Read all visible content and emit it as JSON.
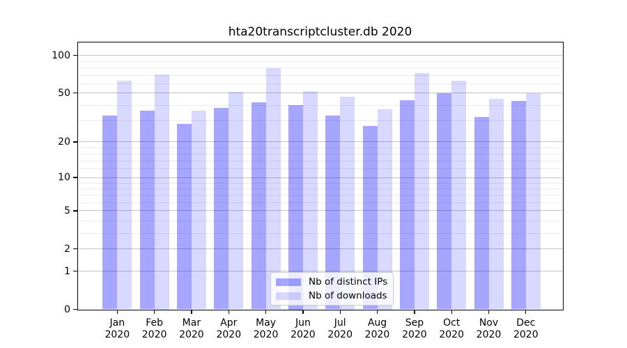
{
  "figure": {
    "title": "hta20transcriptcluster.db 2020"
  },
  "chart_data": {
    "type": "bar",
    "title": "hta20transcriptcluster.db 2020",
    "xlabel": "",
    "ylabel": "",
    "categories": [
      "Jan 2020",
      "Feb 2020",
      "Mar 2020",
      "Apr 2020",
      "May 2020",
      "Jun 2020",
      "Jul 2020",
      "Aug 2020",
      "Sep 2020",
      "Oct 2020",
      "Nov 2020",
      "Dec 2020"
    ],
    "series": [
      {
        "name": "Nb of distinct IPs",
        "color": "rgba(0,0,255,0.35)",
        "values": [
          33,
          36,
          28,
          38,
          42,
          40,
          33,
          27,
          44,
          50,
          32,
          43
        ]
      },
      {
        "name": "Nb of downloads",
        "color": "rgba(0,0,255,0.15)",
        "values": [
          63,
          71,
          36,
          51,
          79,
          52,
          47,
          37,
          72,
          63,
          45,
          50
        ]
      }
    ],
    "yscale": "log1p",
    "ylim": [
      0,
      127
    ],
    "y_major_ticks": [
      0,
      1,
      2,
      5,
      10,
      20,
      50,
      100
    ],
    "y_minor_gridlines": [
      3,
      4,
      6,
      7,
      8,
      9,
      12,
      14,
      16,
      18,
      30,
      40,
      60,
      70,
      80,
      90
    ],
    "grid": true,
    "legend_position": "lower center",
    "colors": {
      "axis": "#000000",
      "major_grid": "#c3c3c3",
      "minor_grid": "#ebebeb",
      "background": "#ffffff"
    }
  }
}
